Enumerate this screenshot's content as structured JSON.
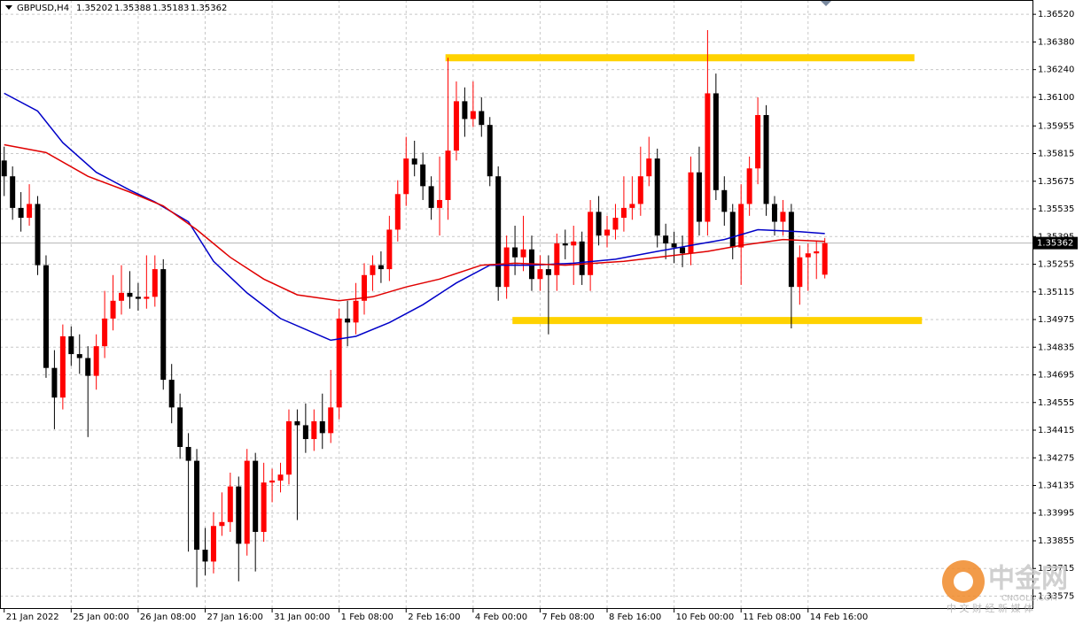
{
  "chart_data": {
    "type": "candlestick",
    "symbol": "GBPUSD,H4",
    "categories": [
      "21 Jan 2022",
      null,
      null,
      null,
      null,
      null,
      null,
      null,
      "25 Jan 00:00",
      null,
      null,
      null,
      null,
      null,
      null,
      null,
      "26 Jan 08:00",
      null,
      null,
      null,
      null,
      null,
      null,
      null,
      "27 Jan 16:00",
      null,
      null,
      null,
      null,
      null,
      null,
      null,
      "31 Jan 00:00",
      null,
      null,
      null,
      null,
      null,
      null,
      null,
      "1 Feb 08:00",
      null,
      null,
      null,
      null,
      null,
      null,
      null,
      "2 Feb 16:00",
      null,
      null,
      null,
      null,
      null,
      null,
      null,
      "4 Feb 00:00",
      null,
      null,
      null,
      null,
      null,
      null,
      null,
      "7 Feb 08:00",
      null,
      null,
      null,
      null,
      null,
      null,
      null,
      "8 Feb 16:00",
      null,
      null,
      null,
      null,
      null,
      null,
      null,
      "10 Feb 00:00",
      null,
      null,
      null,
      null,
      null,
      null,
      null,
      "11 Feb 08:00",
      null,
      null,
      null,
      null,
      null,
      null,
      null,
      "14 Feb 16:00",
      null,
      null
    ],
    "open": [
      1.3578,
      1.357,
      1.3554,
      1.3549,
      1.3556,
      1.3525,
      1.3473,
      1.3458,
      1.3489,
      1.348,
      1.3478,
      1.3469,
      1.3484,
      1.3498,
      1.3507,
      1.3511,
      1.3509,
      1.3508,
      1.3509,
      1.3523,
      1.3467,
      1.3453,
      1.3433,
      1.3426,
      1.3381,
      1.3375,
      1.3393,
      1.3395,
      1.3413,
      1.3384,
      1.3426,
      1.339,
      1.3415,
      1.3416,
      1.3419,
      1.3446,
      1.3444,
      1.3437,
      1.3446,
      1.344,
      1.3453,
      1.3498,
      1.3496,
      1.3507,
      1.352,
      1.3525,
      1.3523,
      1.3543,
      1.3561,
      1.3579,
      1.3576,
      1.3565,
      1.3554,
      1.3558,
      1.3583,
      1.3608,
      1.3599,
      1.3603,
      1.3596,
      1.357,
      1.3514,
      1.3534,
      1.3529,
      1.3533,
      1.3518,
      1.3523,
      1.352,
      1.3536,
      1.3535,
      1.3537,
      1.352,
      1.3552,
      1.354,
      1.3543,
      1.3549,
      1.3554,
      1.3556,
      1.357,
      1.3579,
      1.354,
      1.3536,
      1.3534,
      1.3531,
      1.3572,
      1.3547,
      1.3612,
      1.3563,
      1.3552,
      1.3534,
      1.3556,
      1.3574,
      1.3601,
      1.3556,
      1.3547,
      1.3552,
      1.3514,
      1.3529,
      1.3531,
      1.35202
    ],
    "high": [
      1.3585,
      1.3575,
      1.3562,
      1.3566,
      1.356,
      1.353,
      1.3482,
      1.3495,
      1.3494,
      1.349,
      1.3484,
      1.349,
      1.3512,
      1.352,
      1.3525,
      1.3522,
      1.3516,
      1.353,
      1.353,
      1.3528,
      1.3475,
      1.346,
      1.344,
      1.3432,
      1.3392,
      1.34,
      1.341,
      1.342,
      1.3418,
      1.3432,
      1.343,
      1.3425,
      1.3422,
      1.3425,
      1.3452,
      1.3452,
      1.3455,
      1.3452,
      1.346,
      1.3472,
      1.3503,
      1.3507,
      1.3516,
      1.3526,
      1.353,
      1.3532,
      1.355,
      1.3568,
      1.359,
      1.3588,
      1.3582,
      1.357,
      1.358,
      1.363,
      1.3618,
      1.3615,
      1.3618,
      1.361,
      1.36,
      1.3575,
      1.354,
      1.3545,
      1.355,
      1.354,
      1.353,
      1.353,
      1.3541,
      1.3543,
      1.3545,
      1.3542,
      1.3558,
      1.356,
      1.355,
      1.3556,
      1.357,
      1.357,
      1.3585,
      1.359,
      1.3584,
      1.3546,
      1.3542,
      1.354,
      1.358,
      1.3585,
      1.3644,
      1.3622,
      1.357,
      1.3556,
      1.3566,
      1.358,
      1.361,
      1.3606,
      1.356,
      1.3558,
      1.3556,
      1.3535,
      1.3536,
      1.3537,
      1.35388
    ],
    "low": [
      1.356,
      1.3548,
      1.3542,
      1.3545,
      1.352,
      1.3468,
      1.3442,
      1.3452,
      1.3474,
      1.347,
      1.3438,
      1.3462,
      1.3478,
      1.3492,
      1.35,
      1.3503,
      1.3502,
      1.3503,
      1.3504,
      1.3462,
      1.3445,
      1.3427,
      1.338,
      1.3362,
      1.3368,
      1.3369,
      1.3388,
      1.339,
      1.3365,
      1.3378,
      1.337,
      1.3385,
      1.3405,
      1.341,
      1.3414,
      1.3396,
      1.343,
      1.3431,
      1.3432,
      1.3435,
      1.3447,
      1.3484,
      1.349,
      1.35,
      1.3512,
      1.3516,
      1.3517,
      1.3537,
      1.3555,
      1.357,
      1.3558,
      1.3548,
      1.354,
      1.3548,
      1.3578,
      1.359,
      1.3595,
      1.359,
      1.3565,
      1.3507,
      1.3508,
      1.352,
      1.3522,
      1.3512,
      1.3512,
      1.349,
      1.3512,
      1.3528,
      1.3515,
      1.3515,
      1.3512,
      1.3535,
      1.3534,
      1.3538,
      1.3542,
      1.3548,
      1.355,
      1.3565,
      1.3534,
      1.3528,
      1.3526,
      1.3524,
      1.3525,
      1.354,
      1.354,
      1.3558,
      1.3545,
      1.3528,
      1.3515,
      1.355,
      1.3566,
      1.355,
      1.354,
      1.354,
      1.3493,
      1.3505,
      1.3512,
      1.3518,
      1.35183
    ],
    "close": [
      1.357,
      1.3554,
      1.3549,
      1.3556,
      1.3525,
      1.3473,
      1.3458,
      1.3489,
      1.348,
      1.3478,
      1.3469,
      1.3484,
      1.3498,
      1.3507,
      1.3511,
      1.3509,
      1.3508,
      1.3509,
      1.3523,
      1.3467,
      1.3453,
      1.3433,
      1.3426,
      1.3381,
      1.3375,
      1.3393,
      1.3395,
      1.3413,
      1.3384,
      1.3426,
      1.339,
      1.3415,
      1.3416,
      1.3419,
      1.3446,
      1.3444,
      1.3437,
      1.3446,
      1.344,
      1.3453,
      1.3498,
      1.3496,
      1.3507,
      1.352,
      1.3525,
      1.3523,
      1.3543,
      1.3561,
      1.3579,
      1.3576,
      1.3565,
      1.3554,
      1.3558,
      1.3583,
      1.3608,
      1.3599,
      1.3603,
      1.3596,
      1.357,
      1.3514,
      1.3534,
      1.3529,
      1.3533,
      1.3518,
      1.3523,
      1.352,
      1.3536,
      1.3535,
      1.3537,
      1.352,
      1.3552,
      1.354,
      1.3543,
      1.3549,
      1.3554,
      1.3556,
      1.357,
      1.3579,
      1.354,
      1.3536,
      1.3534,
      1.3531,
      1.3572,
      1.3547,
      1.3612,
      1.3563,
      1.3552,
      1.3534,
      1.3556,
      1.3574,
      1.3601,
      1.3556,
      1.3547,
      1.3552,
      1.3514,
      1.3529,
      1.3531,
      1.3532,
      1.35362
    ],
    "up_color": "#ff0000",
    "down_color": "#000000",
    "moving_averages": [
      {
        "color": "#0000c8",
        "x": [
          0,
          4,
          7,
          11,
          15,
          18,
          22,
          25,
          29,
          33,
          39,
          42,
          46,
          50,
          54,
          58,
          63,
          68,
          73,
          78,
          82,
          86,
          90,
          95,
          98
        ],
        "values": [
          1.3612,
          1.3603,
          1.3587,
          1.3572,
          1.3563,
          1.3557,
          1.3547,
          1.3527,
          1.3511,
          1.3498,
          1.3487,
          1.3489,
          1.3496,
          1.3505,
          1.3516,
          1.3525,
          1.3525,
          1.3526,
          1.3528,
          1.3532,
          1.3535,
          1.3538,
          1.3543,
          1.3542,
          1.3541
        ]
      },
      {
        "color": "#e00000",
        "x": [
          0,
          5,
          10,
          15,
          19,
          23,
          27,
          31,
          35,
          40,
          44,
          48,
          52,
          57,
          61,
          67,
          74,
          80,
          84,
          88,
          93,
          98
        ],
        "values": [
          1.3586,
          1.3582,
          1.357,
          1.3562,
          1.3555,
          1.3543,
          1.3529,
          1.3518,
          1.351,
          1.3507,
          1.3509,
          1.3514,
          1.3518,
          1.3525,
          1.3526,
          1.3525,
          1.3527,
          1.353,
          1.3532,
          1.3535,
          1.3538,
          1.3537
        ]
      }
    ],
    "levels": [
      {
        "value": 1.363,
        "x": [
          52.7,
          108.7
        ],
        "color": "#ffd200"
      },
      {
        "value": 1.3497,
        "x": [
          60.7,
          109.6
        ],
        "color": "#ffd200"
      }
    ],
    "xlim": [
      -0.5,
      122.8
    ],
    "ylim": [
      1.3351,
      1.3657
    ],
    "yticks": [
      {
        "value": 1.3652,
        "label": "1.36520"
      },
      {
        "value": 1.3638,
        "label": "1.36380"
      },
      {
        "value": 1.3624,
        "label": "1.36240"
      },
      {
        "value": 1.361,
        "label": "1.36100"
      },
      1.35955,
      1.35815,
      1.35675,
      1.35535,
      1.35395,
      1.35255,
      1.35115,
      1.34975,
      1.34835,
      1.34695,
      1.34555,
      1.34415,
      1.34275,
      1.34135,
      1.33995,
      1.33855,
      1.33715,
      1.33575
    ],
    "grid": true,
    "watermark": {
      "logo": "中金网",
      "site": "CNGOLD.COM",
      "slogan": "中 文 财 经 新 媒 体"
    }
  }
}
